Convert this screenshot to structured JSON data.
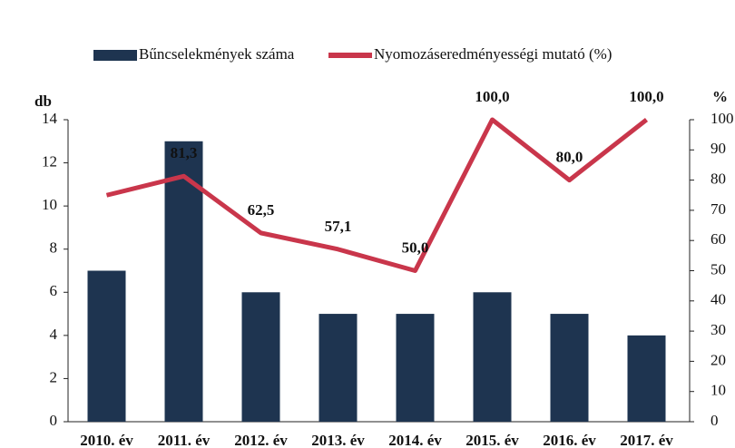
{
  "chart_data": {
    "type": "bar_line",
    "categories": [
      "2010. év",
      "2011. év",
      "2012. év",
      "2013. év",
      "2014. év",
      "2015. év",
      "2016. év",
      "2017. év"
    ],
    "series": [
      {
        "name": "Bűncselekmények száma",
        "color": "#1e3450",
        "values": [
          7,
          13,
          6,
          5,
          5,
          6,
          5,
          4
        ]
      },
      {
        "name": "Nyomozáseredményességi mutató (%)",
        "color": "#c9364b",
        "axis": "y2",
        "values": [
          75,
          81.3,
          62.5,
          57.1,
          50.0,
          100.0,
          80.0,
          100.0
        ],
        "value_labels": [
          null,
          "81,3",
          "62,5",
          "57,1",
          "50,0",
          "100,0",
          "80,0",
          "100,0"
        ]
      }
    ],
    "ylabel": "db",
    "y2label": "%",
    "ylim": [
      0,
      14
    ],
    "yticks": [
      0,
      2,
      4,
      6,
      8,
      10,
      12,
      14
    ],
    "y2lim": [
      0,
      100
    ],
    "y2ticks": [
      0,
      10,
      20,
      30,
      40,
      50,
      60,
      70,
      80,
      90,
      100
    ]
  }
}
